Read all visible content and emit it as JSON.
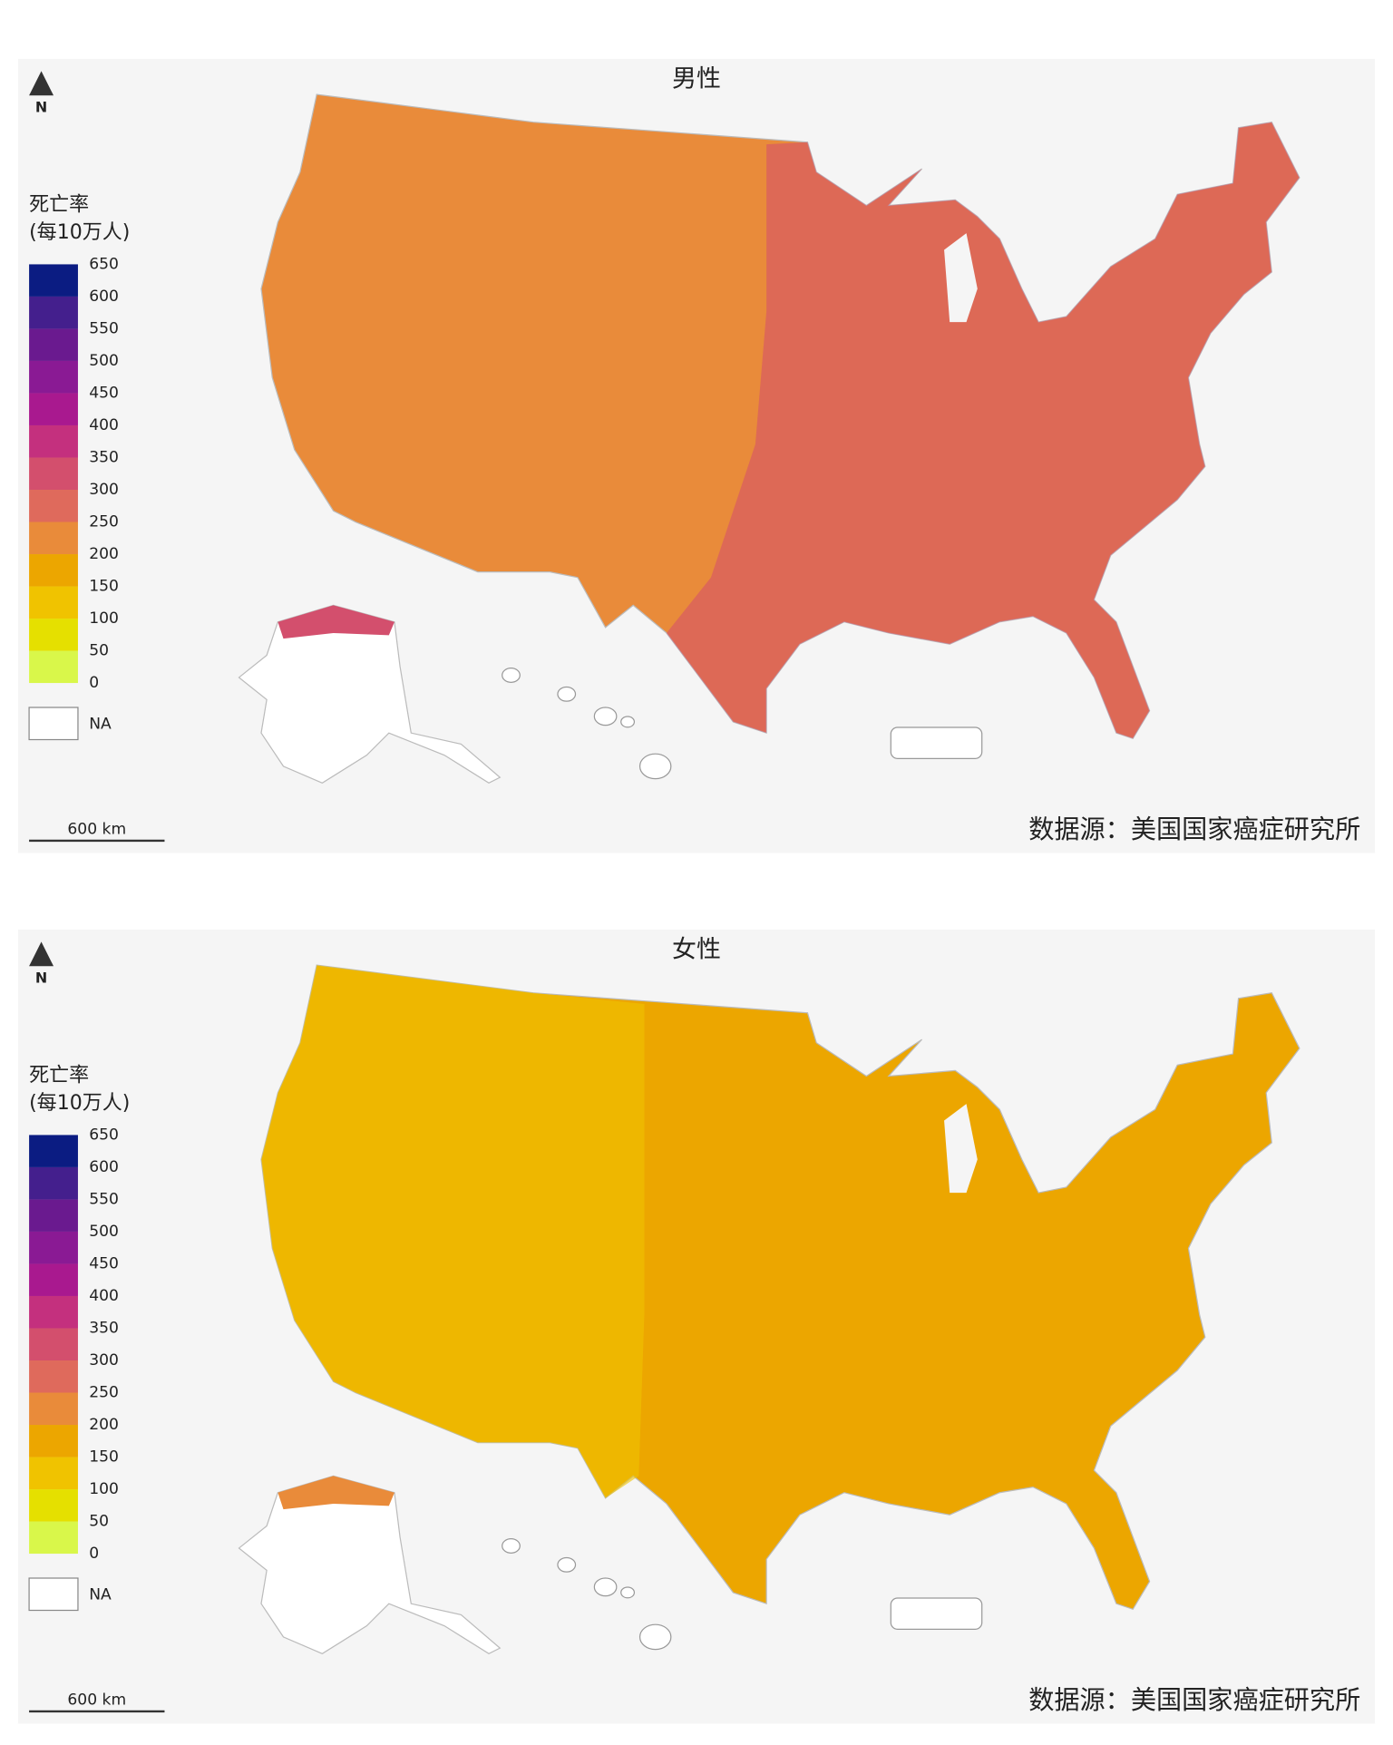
{
  "north": "N",
  "legend": {
    "title": [
      "死亡率",
      "(每10万人)"
    ],
    "ticks": [
      0,
      50,
      100,
      150,
      200,
      250,
      300,
      350,
      400,
      450,
      500,
      550,
      600,
      650
    ],
    "colors": [
      "#d9f74a",
      "#e5e000",
      "#f0c300",
      "#eca600",
      "#e98b3a",
      "#df6a5c",
      "#d34f6d",
      "#c4307e",
      "#a9198f",
      "#8a1a94",
      "#6a1a8f",
      "#441f8d",
      "#0b1c82"
    ],
    "na_label": "NA"
  },
  "scale_bar": "600 km",
  "source": "数据源：美国国家癌症研究所",
  "panels": [
    {
      "title": "男性"
    },
    {
      "title": "女性"
    }
  ]
}
